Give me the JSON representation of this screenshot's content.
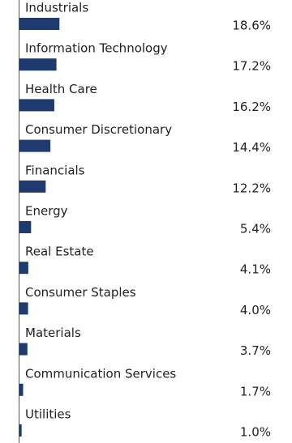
{
  "chart_data": {
    "type": "bar",
    "orientation": "horizontal",
    "color": "#1f3a6e",
    "categories": [
      "Industrials",
      "Information Technology",
      "Health Care",
      "Consumer Discretionary",
      "Financials",
      "Energy",
      "Real Estate",
      "Consumer Staples",
      "Materials",
      "Communication Services",
      "Utilities"
    ],
    "values": [
      18.6,
      17.2,
      16.2,
      14.4,
      12.2,
      5.4,
      4.1,
      4.0,
      3.7,
      1.7,
      1.0
    ],
    "value_labels": [
      "18.6%",
      "17.2%",
      "16.2%",
      "14.4%",
      "12.2%",
      "5.4%",
      "4.1%",
      "4.0%",
      "3.7%",
      "1.7%",
      "1.0%"
    ]
  }
}
